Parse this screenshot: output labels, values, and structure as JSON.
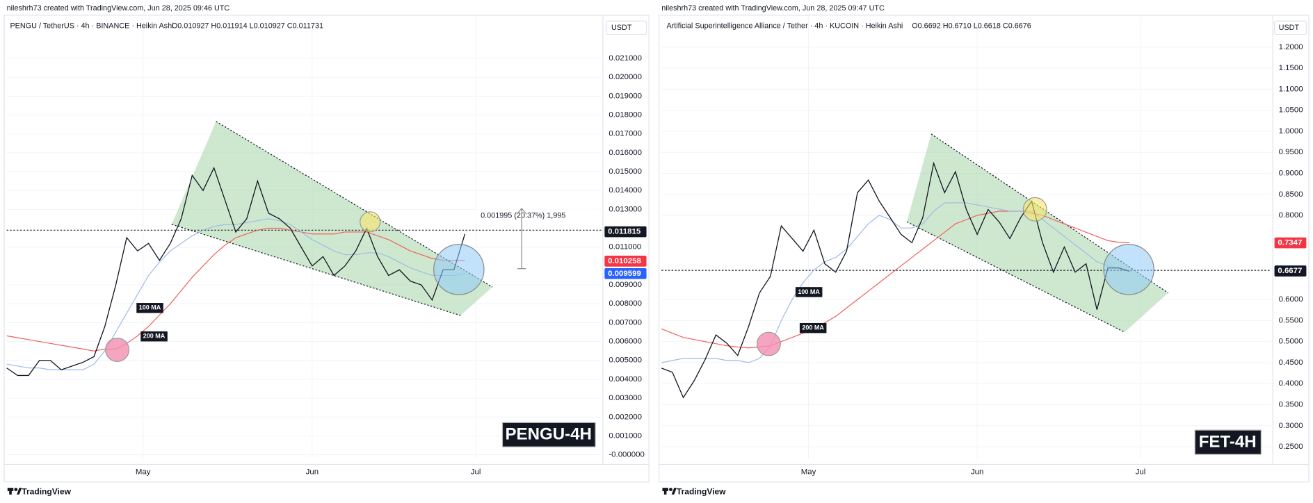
{
  "header_left": "nileshrh73 created with TradingView.com, Jun 28, 2025 09:46 UTC",
  "header_right": "nileshrh73 created with TradingView.com, Jun 28, 2025 09:47 UTC",
  "footer": "TradingView",
  "chart_data": [
    {
      "type": "line",
      "symbol": "PENGU / TetherUS · 4h · BINANCE · Heikin Ashi",
      "ohlc": "O0.010927 H0.011914 L0.010927 C0.011731",
      "currency": "USDT",
      "watermark": "PENGU-4H",
      "measure": "0.001995 (20.37%) 1,995",
      "x": [
        0,
        2,
        4,
        6,
        8,
        10,
        12,
        14,
        16,
        18,
        20,
        22,
        24,
        26,
        28,
        30,
        32,
        34,
        36,
        38,
        40,
        42,
        44,
        46,
        48,
        50,
        52,
        54,
        56,
        58,
        60,
        62,
        64,
        66,
        68,
        70,
        72,
        74,
        76,
        78,
        80,
        82,
        84
      ],
      "xlim": [
        0,
        109
      ],
      "xticks": [
        {
          "value": 25,
          "label": "May"
        },
        {
          "value": 56,
          "label": "Jun"
        },
        {
          "value": 86,
          "label": "Jul"
        }
      ],
      "ylim": [
        -0.0002,
        0.0232
      ],
      "yticks": [
        {
          "value": 0.021,
          "label": "0.021000"
        },
        {
          "value": 0.02,
          "label": "0.020000"
        },
        {
          "value": 0.019,
          "label": "0.019000"
        },
        {
          "value": 0.018,
          "label": "0.018000"
        },
        {
          "value": 0.017,
          "label": "0.017000"
        },
        {
          "value": 0.016,
          "label": "0.016000"
        },
        {
          "value": 0.015,
          "label": "0.015000"
        },
        {
          "value": 0.014,
          "label": "0.014000"
        },
        {
          "value": 0.013,
          "label": "0.013000"
        },
        {
          "value": 0.011,
          "label": "0.011000"
        },
        {
          "value": 0.009,
          "label": "0.009000"
        },
        {
          "value": 0.008,
          "label": "0.008000"
        },
        {
          "value": 0.007,
          "label": "0.007000"
        },
        {
          "value": 0.006,
          "label": "0.006000"
        },
        {
          "value": 0.005,
          "label": "0.005000"
        },
        {
          "value": 0.004,
          "label": "0.004000"
        },
        {
          "value": 0.003,
          "label": "0.003000"
        },
        {
          "value": 0.002,
          "label": "0.002000"
        },
        {
          "value": 0.001,
          "label": "0.001000"
        },
        {
          "value": 0,
          "label": "-0.000000"
        }
      ],
      "grid": true,
      "series": [
        {
          "color": "#131722",
          "values": [
            0.0046,
            0.0042,
            0.0042,
            0.005,
            0.005,
            0.0045,
            0.0047,
            0.0049,
            0.0052,
            0.0068,
            0.009,
            0.0115,
            0.0108,
            0.0112,
            0.0103,
            0.0112,
            0.0125,
            0.0148,
            0.014,
            0.0152,
            0.0135,
            0.0118,
            0.0125,
            0.0145,
            0.0128,
            0.0125,
            0.012,
            0.011,
            0.01,
            0.0105,
            0.0095,
            0.01,
            0.0108,
            0.012,
            0.0105,
            0.0095,
            0.0098,
            0.0092,
            0.009,
            0.0082,
            0.0098,
            0.0098,
            0.0117
          ]
        },
        {
          "name": "100 MA",
          "color": "#9dbbe6",
          "values": [
            0.0048,
            0.0047,
            0.0046,
            0.0046,
            0.0045,
            0.0045,
            0.0045,
            0.0045,
            0.0048,
            0.0055,
            0.0065,
            0.0075,
            0.0085,
            0.0095,
            0.0102,
            0.0108,
            0.0112,
            0.0116,
            0.0119,
            0.0121,
            0.0122,
            0.0122,
            0.0123,
            0.0124,
            0.0125,
            0.0124,
            0.0122,
            0.0118,
            0.0114,
            0.0111,
            0.0108,
            0.0106,
            0.0106,
            0.0107,
            0.0107,
            0.0105,
            0.0102,
            0.0099,
            0.0097,
            0.0095,
            0.0095,
            0.0095,
            0.0096
          ]
        },
        {
          "name": "200 MA",
          "color": "#f0605a",
          "values": [
            0.0063,
            0.0062,
            0.0061,
            0.006,
            0.0059,
            0.0058,
            0.0057,
            0.0056,
            0.0055,
            0.0056,
            0.0056,
            0.0059,
            0.0063,
            0.0068,
            0.0074,
            0.008,
            0.0087,
            0.0094,
            0.01,
            0.0106,
            0.0111,
            0.0115,
            0.0117,
            0.0119,
            0.012,
            0.012,
            0.0119,
            0.0118,
            0.0117,
            0.0117,
            0.0117,
            0.0118,
            0.0118,
            0.0118,
            0.0116,
            0.0114,
            0.0111,
            0.0108,
            0.0106,
            0.0104,
            0.0103,
            0.0103,
            0.0103
          ]
        }
      ],
      "price_labels": [
        {
          "value": 0.011815,
          "color": "#131722"
        },
        {
          "value": 0.010258,
          "color": "#f23645"
        },
        {
          "value": 0.009599,
          "color": "#2962ff"
        }
      ]
    },
    {
      "type": "line",
      "symbol": "Artificial Superintelligence Alliance / Tether · 4h · KUCOIN · Heikin Ashi",
      "ohlc": "O0.6692 H0.6710 L0.6618 C0.6676",
      "currency": "USDT",
      "watermark": "FET-4H",
      "x": [
        0,
        2,
        4,
        6,
        8,
        10,
        12,
        14,
        16,
        18,
        20,
        22,
        24,
        26,
        28,
        30,
        32,
        34,
        36,
        38,
        40,
        42,
        44,
        46,
        48,
        50,
        52,
        54,
        56,
        58,
        60,
        62,
        64,
        66,
        68,
        70,
        72,
        74,
        76,
        78,
        80,
        82,
        84,
        86
      ],
      "xlim": [
        0,
        112
      ],
      "xticks": [
        {
          "value": 27,
          "label": "May"
        },
        {
          "value": 58,
          "label": "Jun"
        },
        {
          "value": 88,
          "label": "Jul"
        }
      ],
      "ylim": [
        0.222,
        1.272
      ],
      "yticks": [
        {
          "value": 1.2,
          "label": "1.2000"
        },
        {
          "value": 1.15,
          "label": "1.1500"
        },
        {
          "value": 1.1,
          "label": "1.1000"
        },
        {
          "value": 1.05,
          "label": "1.0500"
        },
        {
          "value": 1,
          "label": "1.0000"
        },
        {
          "value": 0.95,
          "label": "0.9500"
        },
        {
          "value": 0.9,
          "label": "0.9000"
        },
        {
          "value": 0.85,
          "label": "0.8500"
        },
        {
          "value": 0.8,
          "label": "0.8000"
        },
        {
          "value": 0.6,
          "label": "0.6000"
        },
        {
          "value": 0.55,
          "label": "0.5500"
        },
        {
          "value": 0.5,
          "label": "0.5000"
        },
        {
          "value": 0.45,
          "label": "0.4500"
        },
        {
          "value": 0.4,
          "label": "0.4000"
        },
        {
          "value": 0.35,
          "label": "0.3500"
        },
        {
          "value": 0.3,
          "label": "0.3000"
        },
        {
          "value": 0.25,
          "label": "0.2500"
        }
      ],
      "grid": true,
      "series": [
        {
          "color": "#131722",
          "values": [
            0.437,
            0.427,
            0.367,
            0.407,
            0.457,
            0.516,
            0.496,
            0.467,
            0.536,
            0.616,
            0.655,
            0.775,
            0.745,
            0.715,
            0.765,
            0.685,
            0.665,
            0.715,
            0.854,
            0.884,
            0.834,
            0.795,
            0.755,
            0.735,
            0.795,
            0.924,
            0.854,
            0.904,
            0.814,
            0.755,
            0.814,
            0.785,
            0.745,
            0.795,
            0.834,
            0.735,
            0.665,
            0.725,
            0.665,
            0.685,
            0.576,
            0.675,
            0.675,
            0.667
          ]
        },
        {
          "name": "100 MA",
          "color": "#9dbbe6",
          "values": [
            0.45,
            0.455,
            0.46,
            0.46,
            0.46,
            0.46,
            0.455,
            0.455,
            0.45,
            0.46,
            0.49,
            0.55,
            0.6,
            0.64,
            0.67,
            0.69,
            0.7,
            0.72,
            0.75,
            0.78,
            0.8,
            0.79,
            0.77,
            0.77,
            0.78,
            0.81,
            0.83,
            0.83,
            0.83,
            0.825,
            0.82,
            0.815,
            0.81,
            0.81,
            0.81,
            0.79,
            0.77,
            0.75,
            0.73,
            0.71,
            0.69,
            0.68,
            0.675,
            0.668
          ]
        },
        {
          "name": "200 MA",
          "color": "#f0605a",
          "values": [
            0.53,
            0.52,
            0.51,
            0.505,
            0.5,
            0.495,
            0.49,
            0.487,
            0.485,
            0.487,
            0.49,
            0.5,
            0.51,
            0.52,
            0.53,
            0.545,
            0.56,
            0.58,
            0.6,
            0.62,
            0.64,
            0.66,
            0.68,
            0.7,
            0.72,
            0.74,
            0.76,
            0.78,
            0.79,
            0.8,
            0.805,
            0.81,
            0.81,
            0.81,
            0.805,
            0.8,
            0.79,
            0.78,
            0.77,
            0.76,
            0.75,
            0.74,
            0.736,
            0.735
          ]
        }
      ],
      "price_labels": [
        {
          "value": 0.7347,
          "color": "#f23645"
        },
        {
          "value": 0.6682,
          "color": "#2962ff"
        },
        {
          "value": 0.6677,
          "color": "#131722"
        }
      ]
    }
  ]
}
